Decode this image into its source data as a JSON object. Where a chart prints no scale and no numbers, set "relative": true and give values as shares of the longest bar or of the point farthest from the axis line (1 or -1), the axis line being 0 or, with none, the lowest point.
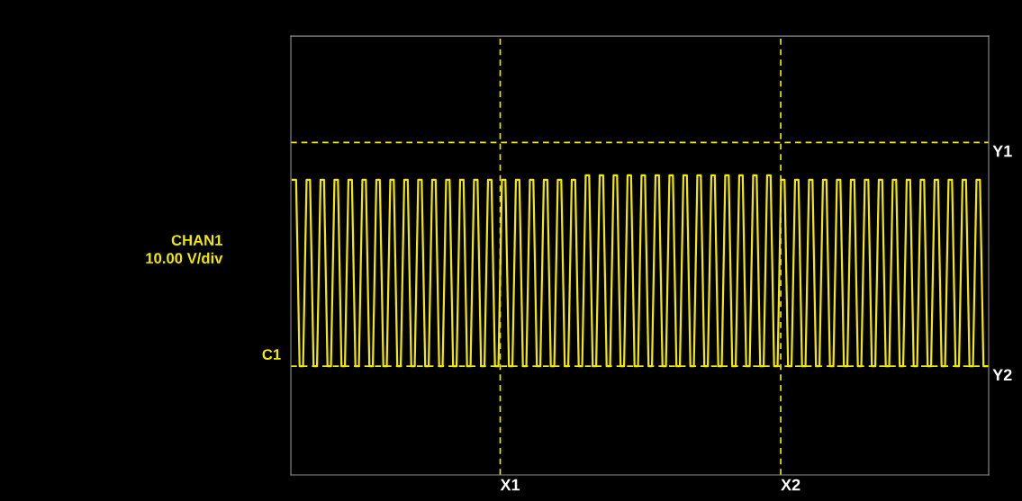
{
  "chart_data": {
    "type": "line",
    "relative": true,
    "categories": [
      null,
      null,
      null,
      null,
      null,
      null,
      null,
      null,
      null,
      null,
      null,
      null,
      null,
      null,
      null,
      null,
      null,
      null,
      null,
      null,
      null,
      null,
      null,
      null,
      null,
      null,
      null,
      null,
      null,
      null,
      null,
      null,
      null,
      null,
      null,
      null,
      null,
      null,
      null,
      null,
      null,
      null,
      null,
      null,
      null,
      null,
      null,
      null,
      null,
      null,
      null,
      null,
      null,
      null,
      null,
      null,
      null,
      null,
      null,
      null,
      null,
      null,
      null,
      null,
      null,
      null,
      null,
      null,
      null,
      null,
      null,
      null,
      null,
      null,
      null,
      null,
      null,
      null,
      null,
      null,
      null,
      null,
      null,
      null,
      null,
      null,
      null,
      null,
      null,
      null,
      null,
      null,
      null,
      null,
      null,
      null,
      null,
      null,
      null,
      null,
      null,
      null,
      null,
      null,
      null,
      null,
      null,
      null,
      null,
      null,
      null,
      null,
      null,
      null,
      null,
      null,
      null,
      null,
      null,
      null,
      null,
      null,
      null,
      null,
      null,
      null,
      null,
      null,
      null,
      null,
      null,
      null,
      null,
      null,
      null,
      null,
      null,
      null,
      null,
      null,
      null,
      null,
      null,
      null,
      null,
      null,
      null,
      null,
      null,
      null,
      null,
      null,
      null,
      null,
      null,
      null,
      null,
      null,
      null,
      null,
      null,
      null,
      null,
      null,
      null,
      null,
      null,
      null,
      null,
      null,
      null,
      null,
      null,
      null,
      null,
      null,
      null,
      null,
      null,
      null,
      null,
      null,
      null,
      null,
      null,
      null,
      null,
      null,
      null,
      null,
      null,
      null,
      null,
      null,
      null,
      null,
      null,
      null,
      null,
      null
    ],
    "series": [
      {
        "color": "#f2e800",
        "values": [
          0.985,
          0.985,
          0.363,
          0.363,
          0.985,
          0.985,
          0.363,
          0.363,
          0.985,
          0.985,
          0.363,
          0.363,
          0.985,
          0.985,
          0.363,
          0.363,
          0.985,
          0.985,
          0.363,
          0.363,
          0.985,
          0.985,
          0.363,
          0.363,
          0.985,
          0.985,
          0.363,
          0.363,
          0.985,
          0.985,
          0.363,
          0.363,
          0.985,
          0.985,
          0.363,
          0.363,
          0.985,
          0.985,
          0.363,
          0.363,
          0.985,
          0.985,
          0.363,
          0.363,
          0.985,
          0.985,
          0.363,
          0.363,
          0.985,
          0.985,
          0.363,
          0.363,
          0.985,
          0.985,
          0.363,
          0.363,
          0.985,
          0.985,
          0.363,
          0.363,
          0.985,
          0.985,
          0.363,
          0.363,
          0.985,
          0.985,
          0.363,
          0.363,
          0.985,
          0.985,
          0.363,
          0.363,
          0.985,
          0.985,
          0.363,
          0.363,
          0.985,
          0.985,
          0.363,
          0.363,
          0.985,
          0.985,
          0.363,
          0.363,
          1,
          1,
          0.363,
          0.363,
          1,
          1,
          0.363,
          0.363,
          1,
          1,
          0.363,
          0.363,
          1,
          1,
          0.363,
          0.363,
          1,
          1,
          0.363,
          0.363,
          1,
          1,
          0.363,
          0.363,
          1,
          1,
          0.363,
          0.363,
          1,
          1,
          0.363,
          0.363,
          1,
          1,
          0.363,
          0.363,
          1,
          1,
          0.363,
          0.363,
          1,
          1,
          0.363,
          0.363,
          1,
          1,
          0.363,
          0.363,
          1,
          1,
          0.363,
          0.363,
          1,
          1,
          0.363,
          0.363,
          0.985,
          0.985,
          0.363,
          0.363,
          0.985,
          0.985,
          0.363,
          0.363,
          0.985,
          0.985,
          0.363,
          0.363,
          0.985,
          0.985,
          0.363,
          0.363,
          0.985,
          0.985,
          0.363,
          0.363,
          0.985,
          0.985,
          0.363,
          0.363,
          0.985,
          0.985,
          0.363,
          0.363,
          0.985,
          0.985,
          0.363,
          0.363,
          0.985,
          0.985,
          0.363,
          0.363,
          0.985,
          0.985,
          0.363,
          0.363,
          0.985,
          0.985,
          0.363,
          0.363,
          0.985,
          0.985,
          0.363,
          0.363,
          0.985,
          0.985,
          0.363,
          0.363,
          0.985,
          0.985,
          0.363,
          0.363,
          0.985,
          0.985,
          0.363,
          0.363
        ]
      }
    ],
    "line_style": "solid",
    "ref_lines": [
      {
        "axis": "y",
        "value": 1.11,
        "label": "Y1",
        "color": "#f2e800",
        "line_style": "dashed"
      },
      {
        "axis": "y",
        "value": 0.363,
        "label": "Y2",
        "color": "#f2e800",
        "line_style": "dashed"
      }
    ],
    "annotations": [
      "CHAN1",
      "10.00 V/div",
      "C1",
      "X1",
      "X2"
    ]
  }
}
